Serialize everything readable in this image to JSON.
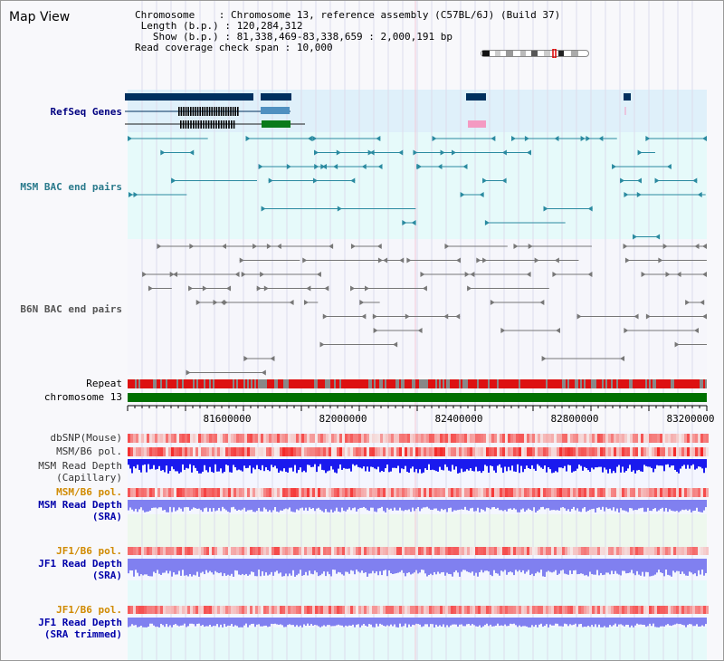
{
  "title": "Map View",
  "info": {
    "chromosome_label": "Chromosome",
    "chromosome_value": "Chromosome 13, reference assembly (C57BL/6J) (Build 37)",
    "length_label": "Length (b.p.)",
    "length_value": "120,284,312",
    "show_label": "Show (b.p.)",
    "show_value": "81,338,469-83,338,659 : 2,000,191 bp",
    "coverage_label": "Read coverage check span",
    "coverage_value": "10,000"
  },
  "tracks": {
    "refseq": "RefSeq Genes",
    "msm_bac": "MSM BAC end pairs",
    "b6n_bac": "B6N BAC end pairs",
    "repeat": "Repeat",
    "chromosome": "chromosome 13",
    "dbsnp": "dbSNP(Mouse)",
    "msm_b6_pol_1": "MSM/B6 pol.",
    "msm_read_depth_cap_1": "MSM Read Depth",
    "msm_read_depth_cap_2": "(Capillary)",
    "msm_b6_pol_2": "MSM/B6 pol.",
    "msm_read_depth_sra_1": "MSM Read Depth",
    "msm_read_depth_sra_2": "(SRA)",
    "jf1_b6_pol_1": "JF1/B6 pol.",
    "jf1_read_depth_sra_1": "JF1 Read Depth",
    "jf1_read_depth_sra_2": "(SRA)",
    "jf1_b6_pol_2": "JF1/B6 pol.",
    "jf1_read_depth_trim_1": "JF1 Read Depth",
    "jf1_read_depth_trim_2": "(SRA trimmed)"
  },
  "axis": {
    "ticks": [
      "81600000",
      "82000000",
      "82400000",
      "82800000",
      "83200000"
    ]
  },
  "colors": {
    "refseq_bg": "#dff0fa",
    "msm_bg": "#e6fafa",
    "b6n_bg": "#f6f6fb",
    "gene_navy": "#00305e",
    "gene_steel": "#5090c0",
    "gene_green": "#0a7a1a",
    "gene_pink": "#f49ac2",
    "msm_feature": "#2a8aa0",
    "b6n_feature": "#777777",
    "chromosome_bar": "#007000",
    "repeat_red": "#dd1111",
    "repeat_gray": "#888888",
    "depth_blue": "#1a1aee",
    "depth_light": "#8080f0",
    "pol_red": "#ee2222"
  }
}
